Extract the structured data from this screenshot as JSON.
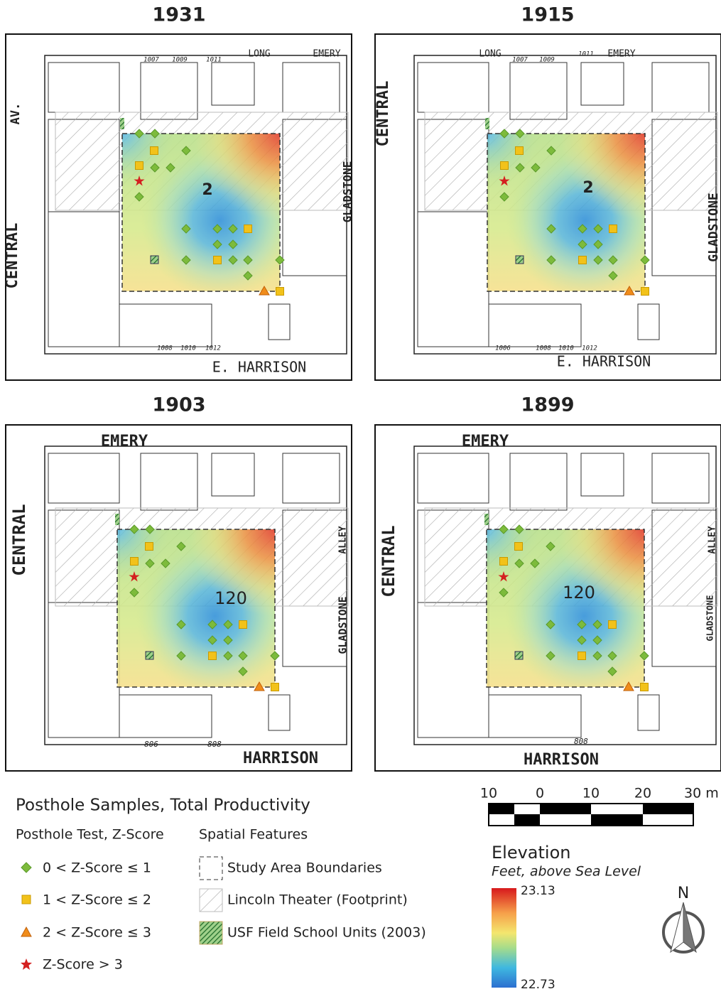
{
  "panels": [
    {
      "title": "1931",
      "labels": [
        "LONG",
        "EMERY",
        "AV.",
        "CENTRAL",
        "GLADSTONE",
        "E. HARRISON",
        "2",
        "1007",
        "1009",
        "1011",
        "1008",
        "1010",
        "1012"
      ]
    },
    {
      "title": "1915",
      "labels": [
        "LONG",
        "EMERY",
        "CENTRAL",
        "GLADSTONE",
        "E. HARRISON",
        "2",
        "1007",
        "1009",
        "1011",
        "1006",
        "1008",
        "1010",
        "1012"
      ]
    },
    {
      "title": "1903",
      "labels": [
        "EMERY",
        "CENTRAL",
        "ALLEY",
        "GLADSTONE",
        "HARRISON",
        "120",
        "806",
        "808"
      ]
    },
    {
      "title": "1899",
      "labels": [
        "EMERY",
        "CENTRAL",
        "ALLEY",
        "GLADSTONE",
        "HARRISON",
        "120",
        "808"
      ]
    }
  ],
  "legend": {
    "title": "Posthole Samples, Total Productivity",
    "samples_heading": "Posthole Test, Z-Score",
    "samples": [
      "0 < Z-Score ≤ 1",
      "1 < Z-Score ≤ 2",
      "2 < Z-Score ≤ 3",
      "Z-Score > 3"
    ],
    "features_heading": "Spatial Features",
    "features": [
      "Study Area Boundaries",
      "Lincoln Theater (Footprint)",
      "USF Field School Units (2003)"
    ]
  },
  "scale": {
    "labels": [
      "10",
      "0",
      "10",
      "20",
      "30 m"
    ]
  },
  "elevation": {
    "title": "Elevation",
    "subtitle": "Feet, above Sea Level",
    "max": "23.13",
    "min": "22.73"
  },
  "north": "N"
}
